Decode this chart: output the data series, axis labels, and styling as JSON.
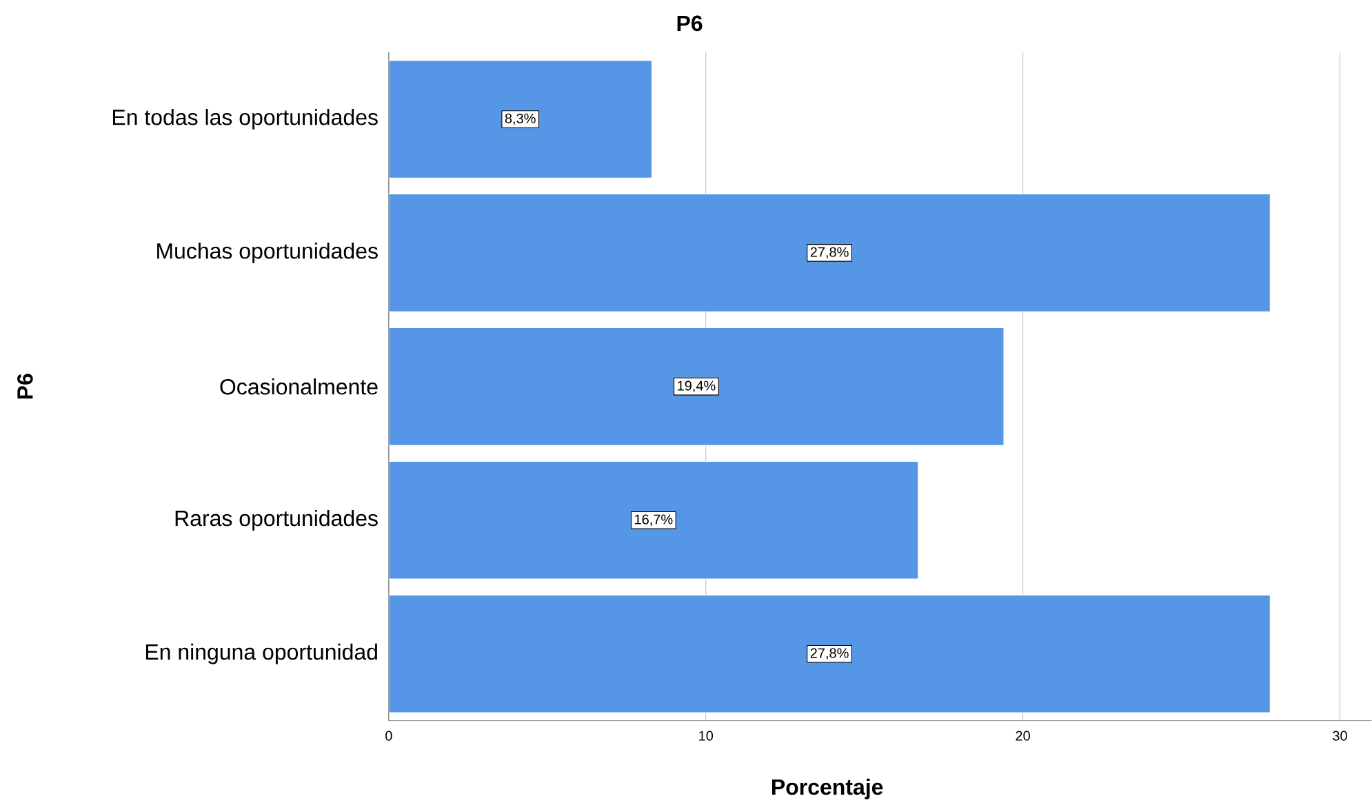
{
  "chart_data": {
    "type": "bar",
    "orientation": "horizontal",
    "title": "P6",
    "xlabel": "Porcentaje",
    "ylabel": "P6",
    "categories": [
      "En todas las oportunidades",
      "Muchas oportunidades",
      "Ocasionalmente",
      "Raras oportunidades",
      "En ninguna oportunidad"
    ],
    "values": [
      8.3,
      27.8,
      19.4,
      16.7,
      27.8
    ],
    "value_labels": [
      "8,3%",
      "27,8%",
      "19,4%",
      "16,7%",
      "27,8%"
    ],
    "color": "#5596e6",
    "xlim": [
      0,
      31
    ],
    "xticks": [
      0,
      10,
      20,
      30
    ],
    "grid": "x"
  }
}
